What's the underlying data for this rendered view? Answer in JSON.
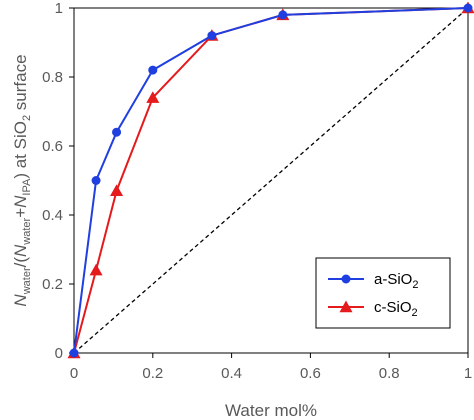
{
  "chart_data": {
    "type": "line",
    "xlabel": "Water mol%",
    "ylabel": "N_water/(N_water+N_IPA) at SiO2 surface",
    "xlim": [
      0,
      1
    ],
    "ylim": [
      0,
      1
    ],
    "x_ticks": [
      "0",
      "0.2",
      "0.4",
      "0.6",
      "0.8",
      "1"
    ],
    "y_ticks": [
      "0",
      "0.2",
      "0.4",
      "0.6",
      "0.8",
      "1"
    ],
    "ylabel_parts": {
      "n1": "N",
      "s1": "water",
      "t1": "/(",
      "n2": "N",
      "s2": "water",
      "t2": "+",
      "n3": "N",
      "s3": "IPA",
      "t3": ") at SiO",
      "s4": "2",
      "t4": " surface"
    },
    "reference_line": {
      "style": "dashed",
      "color": "#000000",
      "x": [
        0,
        1
      ],
      "y": [
        0,
        1
      ]
    },
    "legend": {
      "position": "bottom-right"
    },
    "series": [
      {
        "name": "a-SiO2",
        "label_main": "a-SiO",
        "label_sub": "2",
        "color": "#1f3fe0",
        "marker": "circle",
        "x": [
          0,
          0.056,
          0.108,
          0.2,
          0.35,
          0.53,
          1.0
        ],
        "y": [
          0,
          0.5,
          0.64,
          0.82,
          0.92,
          0.98,
          1.0
        ]
      },
      {
        "name": "c-SiO2",
        "label_main": "c-SiO",
        "label_sub": "2",
        "color": "#e41a1c",
        "marker": "triangle",
        "x": [
          0,
          0.056,
          0.108,
          0.2,
          0.35,
          0.53,
          1.0
        ],
        "y": [
          0,
          0.24,
          0.47,
          0.74,
          0.92,
          0.98,
          1.0
        ]
      }
    ]
  }
}
